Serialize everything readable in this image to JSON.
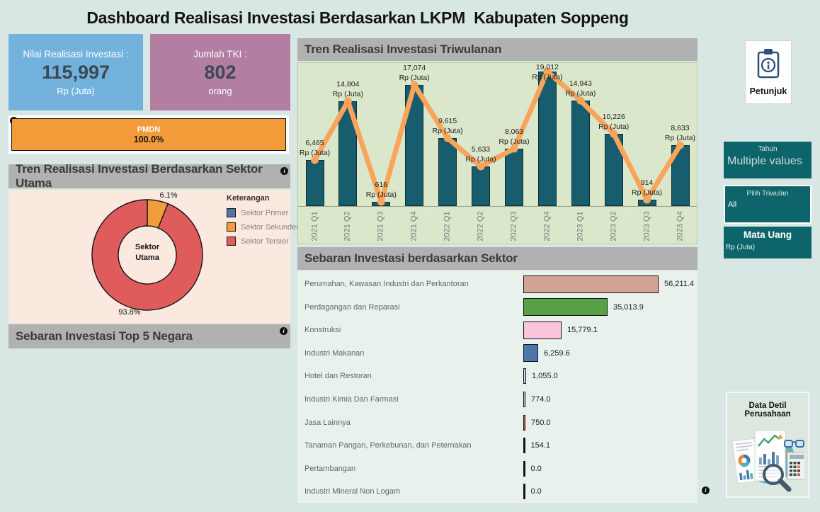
{
  "title": "Dashboard Realisasi Investasi Berdasarkan LKPM  Kabupaten Soppeng",
  "icons": {
    "info": "i"
  },
  "kpi_cards": [
    {
      "label": "Nilai Realisasi Investasi :",
      "value": "115,997",
      "unit": "Rp (Juta)"
    },
    {
      "label": "Jumlah TKI :",
      "value": "802",
      "unit": "orang"
    }
  ],
  "pmdn": {
    "label": "PMDN",
    "value": "100.0%"
  },
  "sections": {
    "sektor_utama": "Tren Realisasi Investasi Berdasarkan Sektor Utama",
    "top5": "Sebaran Investasi Top 5 Negara",
    "triwulanan": "Tren Realisasi Investasi Triwulanan",
    "sebaran_sektor": "Sebaran Investasi berdasarkan Sektor"
  },
  "donut": {
    "center_line1": "Sektor",
    "center_line2": "Utama",
    "legend_title": "Keterangan",
    "labels": {
      "sekunder": "6.1%",
      "tersier": "93.8%"
    }
  },
  "filters": [
    {
      "title": "Tahun",
      "value": "Multiple values"
    },
    {
      "title": "Pilih Triwulan",
      "value": "All"
    },
    {
      "title": "Mata Uang",
      "value": "Rp (Juta)"
    }
  ],
  "petunjuk": {
    "label": "Petunjuk"
  },
  "data_detil": {
    "title": "Data Detil Perusahaan"
  },
  "colors": {
    "background": "#d8e7e3",
    "header_gray": "#b1b1b1",
    "kpi_blue": "#74b2de",
    "kpi_purple": "#b27fa3",
    "pmdn_orange": "#f29b38",
    "bar_teal": "#175d6d",
    "line_orange": "#f8a55b",
    "chart_bg": "#dbe7cb",
    "donut_bg": "#fbe9e0",
    "filter_teal": "#0e646b"
  },
  "chart_data": [
    {
      "type": "pie",
      "donut": true,
      "title": "Tren Realisasi Investasi Berdasarkan Sektor Utama",
      "categories": [
        "Sektor Primer",
        "Sektor Sekunder",
        "Sektor Tersier"
      ],
      "values": [
        0.0,
        6.1,
        93.8
      ],
      "unit": "%",
      "colors": [
        "#4d77a8",
        "#f09d3c",
        "#e05c5c"
      ],
      "center_label": "Sektor Utama",
      "legend_title": "Keterangan",
      "legend_position": "right",
      "shown_labels": [
        "6.1%",
        "93.8%"
      ]
    },
    {
      "type": "bar",
      "subtype": "bar+line combo, dual encoding of same series",
      "title": "Tren Realisasi Investasi Triwulanan",
      "categories": [
        "2021 Q1",
        "2021 Q2",
        "2021 Q3",
        "2021 Q4",
        "2022 Q1",
        "2022 Q2",
        "2022 Q3",
        "2022 Q4",
        "2023 Q1",
        "2023 Q2",
        "2023 Q3",
        "2023 Q4"
      ],
      "values": [
        6465,
        14804,
        616,
        17074,
        9615,
        5633,
        8063,
        19012,
        14943,
        10226,
        914,
        8633
      ],
      "value_labels": [
        "6,465",
        "14,804",
        "616",
        "17,074",
        "9,615",
        "5,633",
        "8,063",
        "19,012",
        "14,943",
        "10,226",
        "914",
        "8,633"
      ],
      "label_unit": "Rp (Juta)",
      "ylim": [
        0,
        19012
      ],
      "bar_color": "#175d6d",
      "line_color": "#f8a55b",
      "grid": false
    },
    {
      "type": "bar",
      "orientation": "horizontal",
      "title": "Sebaran Investasi berdasarkan Sektor",
      "categories": [
        "Perumahan, Kawasan Industri dan Perkantoran",
        "Perdagangan dan Reparasi",
        "Konstruksi",
        "Industri Makanan",
        "Hotel dan Restoran",
        "Industri Kimia Dan Farmasi",
        "Jasa Lainnya",
        "Tanaman Pangan, Perkebunan, dan Peternakan",
        "Pertambangan",
        "Industri Mineral Non Logam"
      ],
      "values": [
        56211.4,
        35013.9,
        15779.1,
        6259.6,
        1055.0,
        774.0,
        750.0,
        154.1,
        0.0,
        0.0
      ],
      "value_labels": [
        "56,211.4",
        "35,013.9",
        "15,779.1",
        "6,259.6",
        "1,055.0",
        "774.0",
        "750.0",
        "154.1",
        "0.0",
        "0.0"
      ],
      "colors": [
        "#d1a392",
        "#57a045",
        "#fac4da",
        "#4d77a8",
        "#bcdcec",
        "#b9d3c5",
        "#d5584e",
        "#141414",
        "#141414",
        "#141414"
      ],
      "xlim": [
        0,
        56211.4
      ]
    }
  ]
}
